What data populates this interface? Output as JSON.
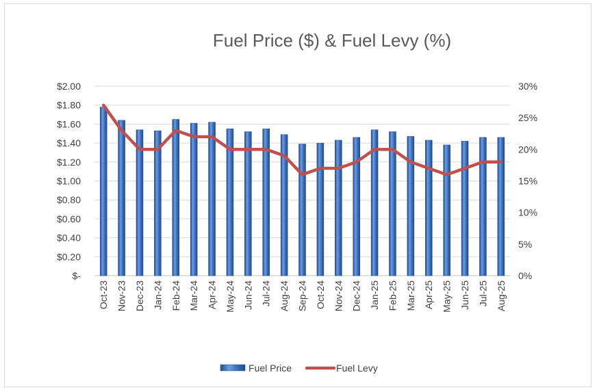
{
  "chart_data": {
    "type": "bar",
    "title": "Fuel Price ($) & Fuel Levy (%)",
    "categories": [
      "Oct-23",
      "Nov-23",
      "Dec-23",
      "Jan-24",
      "Feb-24",
      "Mar-24",
      "Apr-24",
      "May-24",
      "Jun-24",
      "Jul-24",
      "Aug-24",
      "Sep-24",
      "Oct-24",
      "Nov-24",
      "Dec-24",
      "Jan-25",
      "Feb-25",
      "Mar-25",
      "Apr-25",
      "May-25",
      "Jun-25",
      "Jul-25",
      "Aug-25"
    ],
    "series": [
      {
        "name": "Fuel Price",
        "type": "bar",
        "axis": "left",
        "color": "#2e63b5",
        "values": [
          1.78,
          1.64,
          1.54,
          1.53,
          1.65,
          1.61,
          1.62,
          1.55,
          1.52,
          1.55,
          1.49,
          1.39,
          1.4,
          1.43,
          1.46,
          1.54,
          1.52,
          1.47,
          1.43,
          1.38,
          1.42,
          1.46,
          1.46
        ]
      },
      {
        "name": "Fuel Levy",
        "type": "line",
        "axis": "right",
        "color": "#c0504d",
        "values": [
          27,
          23,
          20,
          20,
          23,
          22,
          22,
          20,
          20,
          20,
          19,
          16,
          17,
          17,
          18,
          20,
          20,
          18,
          17,
          16,
          17,
          18,
          18
        ]
      }
    ],
    "left_axis": {
      "range": [
        0,
        2.0
      ],
      "ticks": [
        0,
        0.2,
        0.4,
        0.6,
        0.8,
        1.0,
        1.2,
        1.4,
        1.6,
        1.8,
        2.0
      ],
      "tick_labels": [
        "$-",
        "$0.20",
        "$0.40",
        "$0.60",
        "$0.80",
        "$1.00",
        "$1.20",
        "$1.40",
        "$1.60",
        "$1.80",
        "$2.00"
      ]
    },
    "right_axis": {
      "range": [
        0,
        30
      ],
      "ticks": [
        0,
        5,
        10,
        15,
        20,
        25,
        30
      ],
      "tick_labels": [
        "0%",
        "5%",
        "10%",
        "15%",
        "20%",
        "25%",
        "30%"
      ]
    },
    "gridlines": true,
    "legend_position": "bottom",
    "colors": {
      "bar": "#2e63b5",
      "bar_dark": "#1f4a8c",
      "bar_light": "#6f9be0",
      "line": "#c0504d",
      "grid": "#d9d9d9",
      "text": "#404040",
      "title": "#595959"
    }
  }
}
